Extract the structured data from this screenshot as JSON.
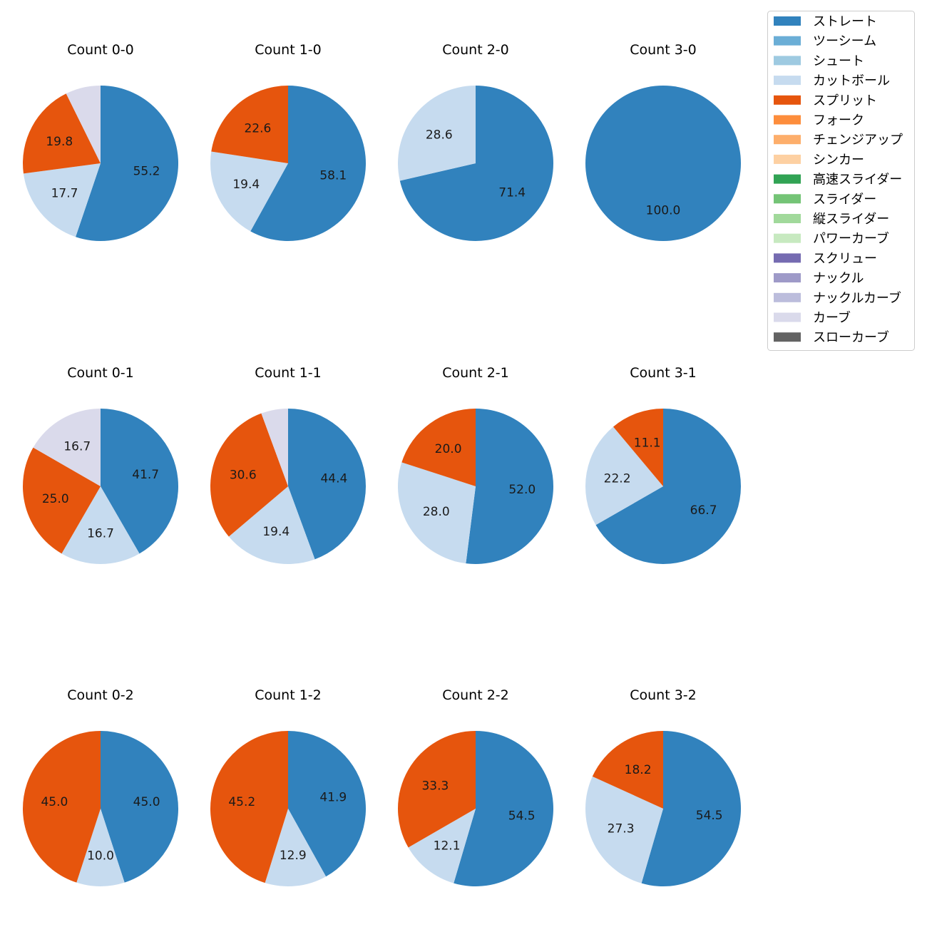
{
  "legend": [
    {
      "name": "ストレート",
      "color": "#3182bd"
    },
    {
      "name": "ツーシーム",
      "color": "#6baed6"
    },
    {
      "name": "シュート",
      "color": "#9ecae1"
    },
    {
      "name": "カットボール",
      "color": "#c6dbef"
    },
    {
      "name": "スプリット",
      "color": "#e6550d"
    },
    {
      "name": "フォーク",
      "color": "#fd8d3c"
    },
    {
      "name": "チェンジアップ",
      "color": "#fdae6b"
    },
    {
      "name": "シンカー",
      "color": "#fdd0a2"
    },
    {
      "name": "高速スライダー",
      "color": "#31a354"
    },
    {
      "name": "スライダー",
      "color": "#74c476"
    },
    {
      "name": "縦スライダー",
      "color": "#a1d99b"
    },
    {
      "name": "パワーカーブ",
      "color": "#c7e9c0"
    },
    {
      "name": "スクリュー",
      "color": "#756bb1"
    },
    {
      "name": "ナックル",
      "color": "#9e9ac8"
    },
    {
      "name": "ナックルカーブ",
      "color": "#bcbddc"
    },
    {
      "name": "カーブ",
      "color": "#dadaeb"
    },
    {
      "name": "スローカーブ",
      "color": "#636363"
    }
  ],
  "chart_data": [
    {
      "type": "pie",
      "title": "Count 0-0",
      "slices": [
        {
          "name": "ストレート",
          "value": 55.2,
          "label": "55.2"
        },
        {
          "name": "カットボール",
          "value": 17.7,
          "label": "17.7"
        },
        {
          "name": "スプリット",
          "value": 19.8,
          "label": "19.8"
        },
        {
          "name": "カーブ",
          "value": 7.3,
          "label": ""
        }
      ]
    },
    {
      "type": "pie",
      "title": "Count 1-0",
      "slices": [
        {
          "name": "ストレート",
          "value": 58.1,
          "label": "58.1"
        },
        {
          "name": "カットボール",
          "value": 19.4,
          "label": "19.4"
        },
        {
          "name": "スプリット",
          "value": 22.6,
          "label": "22.6"
        }
      ]
    },
    {
      "type": "pie",
      "title": "Count 2-0",
      "slices": [
        {
          "name": "ストレート",
          "value": 71.4,
          "label": "71.4"
        },
        {
          "name": "カットボール",
          "value": 28.6,
          "label": "28.6"
        }
      ]
    },
    {
      "type": "pie",
      "title": "Count 3-0",
      "slices": [
        {
          "name": "ストレート",
          "value": 100.0,
          "label": "100.0"
        }
      ]
    },
    {
      "type": "pie",
      "title": "Count 0-1",
      "slices": [
        {
          "name": "ストレート",
          "value": 41.7,
          "label": "41.7"
        },
        {
          "name": "カットボール",
          "value": 16.7,
          "label": "16.7"
        },
        {
          "name": "スプリット",
          "value": 25.0,
          "label": "25.0"
        },
        {
          "name": "カーブ",
          "value": 16.7,
          "label": "16.7"
        }
      ]
    },
    {
      "type": "pie",
      "title": "Count 1-1",
      "slices": [
        {
          "name": "ストレート",
          "value": 44.4,
          "label": "44.4"
        },
        {
          "name": "カットボール",
          "value": 19.4,
          "label": "19.4"
        },
        {
          "name": "スプリット",
          "value": 30.6,
          "label": "30.6"
        },
        {
          "name": "カーブ",
          "value": 5.6,
          "label": ""
        }
      ]
    },
    {
      "type": "pie",
      "title": "Count 2-1",
      "slices": [
        {
          "name": "ストレート",
          "value": 52.0,
          "label": "52.0"
        },
        {
          "name": "カットボール",
          "value": 28.0,
          "label": "28.0"
        },
        {
          "name": "スプリット",
          "value": 20.0,
          "label": "20.0"
        }
      ]
    },
    {
      "type": "pie",
      "title": "Count 3-1",
      "slices": [
        {
          "name": "ストレート",
          "value": 66.7,
          "label": "66.7"
        },
        {
          "name": "カットボール",
          "value": 22.2,
          "label": "22.2"
        },
        {
          "name": "スプリット",
          "value": 11.1,
          "label": "11.1"
        }
      ]
    },
    {
      "type": "pie",
      "title": "Count 0-2",
      "slices": [
        {
          "name": "ストレート",
          "value": 45.0,
          "label": "45.0"
        },
        {
          "name": "カットボール",
          "value": 10.0,
          "label": "10.0"
        },
        {
          "name": "スプリット",
          "value": 45.0,
          "label": "45.0"
        }
      ]
    },
    {
      "type": "pie",
      "title": "Count 1-2",
      "slices": [
        {
          "name": "ストレート",
          "value": 41.9,
          "label": "41.9"
        },
        {
          "name": "カットボール",
          "value": 12.9,
          "label": "12.9"
        },
        {
          "name": "スプリット",
          "value": 45.2,
          "label": "45.2"
        }
      ]
    },
    {
      "type": "pie",
      "title": "Count 2-2",
      "slices": [
        {
          "name": "ストレート",
          "value": 54.5,
          "label": "54.5"
        },
        {
          "name": "カットボール",
          "value": 12.1,
          "label": "12.1"
        },
        {
          "name": "スプリット",
          "value": 33.3,
          "label": "33.3"
        }
      ]
    },
    {
      "type": "pie",
      "title": "Count 3-2",
      "slices": [
        {
          "name": "ストレート",
          "value": 54.5,
          "label": "54.5"
        },
        {
          "name": "カットボール",
          "value": 27.3,
          "label": "27.3"
        },
        {
          "name": "スプリット",
          "value": 18.2,
          "label": "18.2"
        }
      ]
    }
  ]
}
